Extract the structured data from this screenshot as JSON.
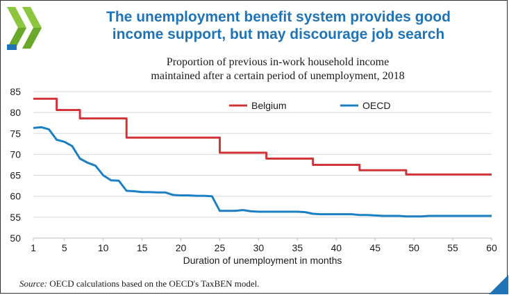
{
  "header": {
    "title_line1": "The unemployment benefit system provides good",
    "title_line2": "income support, but may discourage job search",
    "logo_name": "oecd-logo",
    "brand_color_green": "#8cc63e",
    "brand_color_blue": "#1f73b7"
  },
  "footer": {
    "source_label": "Source:",
    "source_text": "OECD calculations based on the OECD's TaxBEN model."
  },
  "chart_data": {
    "type": "line",
    "title_line1": "Proportion of previous in-work household income",
    "title_line2": "maintained after a certain period of unemployment, 2018",
    "xlabel": "Duration of unemployment in months",
    "ylabel": "",
    "xlim": [
      1,
      60
    ],
    "ylim": [
      50,
      85
    ],
    "x_ticks": [
      1,
      5,
      10,
      15,
      20,
      25,
      30,
      35,
      40,
      45,
      50,
      55,
      60
    ],
    "y_ticks": [
      50,
      55,
      60,
      65,
      70,
      75,
      80,
      85
    ],
    "grid": true,
    "legend_position": "top-right",
    "x": [
      1,
      2,
      3,
      4,
      5,
      6,
      7,
      8,
      9,
      10,
      11,
      12,
      13,
      14,
      15,
      16,
      17,
      18,
      19,
      20,
      21,
      22,
      23,
      24,
      25,
      26,
      27,
      28,
      29,
      30,
      31,
      32,
      33,
      34,
      35,
      36,
      37,
      38,
      39,
      40,
      41,
      42,
      43,
      44,
      45,
      46,
      47,
      48,
      49,
      50,
      51,
      52,
      53,
      54,
      55,
      56,
      57,
      58,
      59,
      60
    ],
    "series": [
      {
        "name": "Belgium",
        "color": "#d13438",
        "step": true,
        "values": [
          83.3,
          83.3,
          83.3,
          80.6,
          80.6,
          80.6,
          78.6,
          78.6,
          78.6,
          78.6,
          78.6,
          78.6,
          74,
          74,
          74,
          74,
          74,
          74,
          74,
          74,
          74,
          74,
          74,
          74,
          70.4,
          70.4,
          70.4,
          70.4,
          70.4,
          70.4,
          69,
          69,
          69,
          69,
          69,
          69,
          67.5,
          67.5,
          67.5,
          67.5,
          67.5,
          67.5,
          66.2,
          66.2,
          66.2,
          66.2,
          66.2,
          66.2,
          65.2,
          65.2,
          65.2,
          65.2,
          65.2,
          65.2,
          65.2,
          65.2,
          65.2,
          65.2,
          65.2,
          65.2
        ]
      },
      {
        "name": "OECD",
        "color": "#1b7fc3",
        "step": false,
        "values": [
          76.3,
          76.5,
          76,
          73.5,
          73,
          72,
          69,
          68,
          67.3,
          65,
          63.8,
          63.7,
          61.3,
          61.2,
          61,
          61,
          60.9,
          60.9,
          60.3,
          60.2,
          60.2,
          60.1,
          60.1,
          60,
          56.5,
          56.5,
          56.5,
          56.7,
          56.4,
          56.3,
          56.3,
          56.3,
          56.3,
          56.3,
          56.3,
          56.2,
          55.8,
          55.7,
          55.7,
          55.7,
          55.7,
          55.7,
          55.5,
          55.5,
          55.4,
          55.3,
          55.3,
          55.3,
          55.2,
          55.2,
          55.2,
          55.3,
          55.3,
          55.3,
          55.3,
          55.3,
          55.3,
          55.3,
          55.3,
          55.3
        ]
      }
    ]
  }
}
